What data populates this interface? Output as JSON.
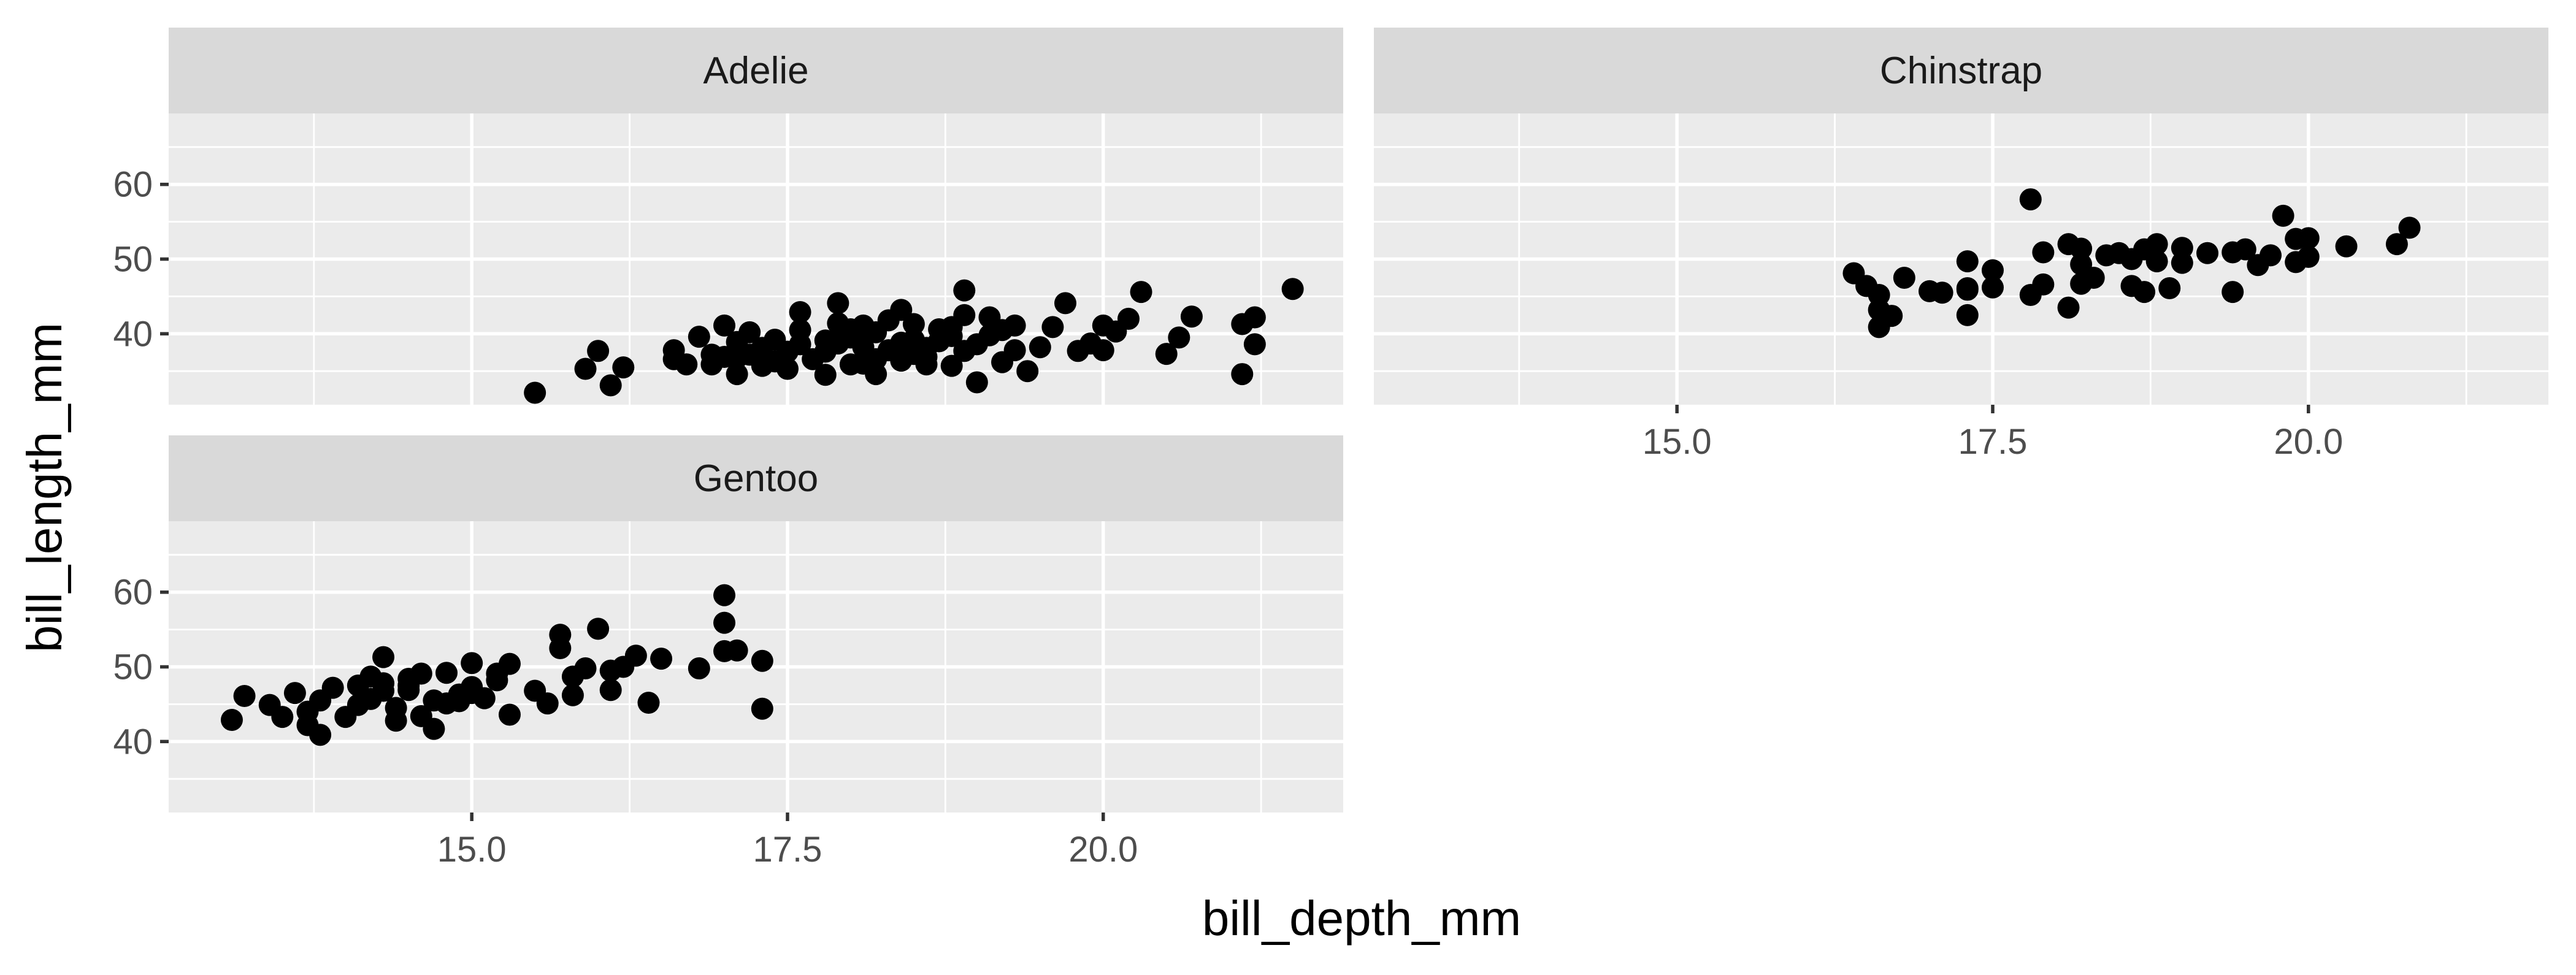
{
  "chart_data": {
    "type": "scatter",
    "xlabel": "bill_depth_mm",
    "ylabel": "bill_length_mm",
    "xlim": [
      12.6,
      21.9
    ],
    "ylim": [
      30.5,
      69.5
    ],
    "x_ticks": [
      15.0,
      17.5,
      20.0
    ],
    "x_tick_labels": [
      "15.0",
      "17.5",
      "20.0"
    ],
    "y_ticks": [
      40,
      50,
      60
    ],
    "y_tick_labels": [
      "40",
      "50",
      "60"
    ],
    "grid": true,
    "facets": [
      {
        "name": "Adelie",
        "points": [
          [
            15.5,
            32.1
          ],
          [
            15.9,
            35.3
          ],
          [
            16.0,
            37.7
          ],
          [
            16.1,
            33.1
          ],
          [
            16.2,
            35.5
          ],
          [
            16.6,
            37.8
          ],
          [
            16.6,
            36.6
          ],
          [
            16.7,
            35.9
          ],
          [
            16.8,
            39.6
          ],
          [
            16.9,
            37.2
          ],
          [
            17.0,
            41.1
          ],
          [
            17.1,
            36.8
          ],
          [
            17.1,
            38.9
          ],
          [
            17.2,
            37.2
          ],
          [
            17.2,
            40.2
          ],
          [
            17.3,
            35.7
          ],
          [
            17.3,
            38.1
          ],
          [
            17.4,
            36.3
          ],
          [
            17.4,
            39.2
          ],
          [
            17.5,
            35.3
          ],
          [
            17.5,
            37.6
          ],
          [
            17.6,
            40.5
          ],
          [
            17.6,
            38.6
          ],
          [
            17.7,
            36.6
          ],
          [
            17.8,
            39.1
          ],
          [
            17.8,
            37.6
          ],
          [
            17.9,
            38.7
          ],
          [
            17.9,
            41.4
          ],
          [
            18.0,
            35.9
          ],
          [
            18.0,
            39.5
          ],
          [
            18.0,
            40.6
          ],
          [
            18.1,
            36.0
          ],
          [
            18.1,
            39.5
          ],
          [
            18.1,
            41.1
          ],
          [
            18.2,
            36.6
          ],
          [
            18.2,
            40.2
          ],
          [
            18.3,
            37.8
          ],
          [
            18.3,
            41.8
          ],
          [
            18.4,
            38.8
          ],
          [
            18.4,
            36.4
          ],
          [
            18.5,
            39.2
          ],
          [
            18.5,
            41.3
          ],
          [
            18.6,
            36.9
          ],
          [
            18.6,
            38.1
          ],
          [
            18.7,
            39.0
          ],
          [
            18.7,
            40.6
          ],
          [
            18.8,
            35.7
          ],
          [
            18.8,
            39.7
          ],
          [
            18.9,
            37.7
          ],
          [
            18.9,
            42.5
          ],
          [
            18.9,
            45.8
          ],
          [
            19.0,
            38.6
          ],
          [
            19.0,
            33.5
          ],
          [
            19.1,
            39.8
          ],
          [
            19.1,
            42.2
          ],
          [
            19.2,
            36.2
          ],
          [
            19.3,
            37.8
          ],
          [
            19.3,
            41.1
          ],
          [
            19.4,
            35.0
          ],
          [
            19.5,
            38.2
          ],
          [
            19.6,
            40.9
          ],
          [
            19.7,
            44.1
          ],
          [
            19.8,
            37.7
          ],
          [
            19.9,
            38.7
          ],
          [
            20.0,
            41.1
          ],
          [
            20.1,
            40.3
          ],
          [
            20.2,
            42.0
          ],
          [
            20.3,
            45.6
          ],
          [
            20.5,
            37.3
          ],
          [
            20.6,
            39.5
          ],
          [
            20.7,
            42.3
          ],
          [
            21.1,
            41.3
          ],
          [
            21.1,
            34.6
          ],
          [
            21.2,
            42.2
          ],
          [
            21.2,
            38.6
          ],
          [
            21.5,
            46.0
          ],
          [
            17.1,
            34.6
          ],
          [
            16.9,
            35.9
          ],
          [
            17.0,
            36.9
          ],
          [
            17.8,
            34.5
          ],
          [
            18.2,
            34.6
          ],
          [
            18.5,
            37.3
          ],
          [
            18.6,
            35.9
          ],
          [
            19.2,
            40.5
          ],
          [
            20.0,
            37.8
          ],
          [
            17.9,
            44.1
          ],
          [
            18.1,
            38.2
          ],
          [
            17.6,
            42.9
          ],
          [
            18.4,
            43.2
          ],
          [
            18.8,
            40.9
          ]
        ]
      },
      {
        "name": "Chinstrap",
        "points": [
          [
            16.4,
            48.1
          ],
          [
            16.5,
            46.4
          ],
          [
            16.6,
            45.2
          ],
          [
            16.6,
            43.2
          ],
          [
            16.6,
            40.9
          ],
          [
            16.7,
            42.4
          ],
          [
            16.8,
            47.5
          ],
          [
            17.0,
            45.7
          ],
          [
            17.1,
            45.5
          ],
          [
            17.3,
            46.1
          ],
          [
            17.3,
            42.5
          ],
          [
            17.3,
            49.7
          ],
          [
            17.5,
            46.2
          ],
          [
            17.5,
            48.5
          ],
          [
            17.8,
            58.0
          ],
          [
            17.8,
            45.2
          ],
          [
            17.9,
            46.6
          ],
          [
            17.9,
            50.9
          ],
          [
            18.1,
            43.5
          ],
          [
            18.1,
            52.0
          ],
          [
            18.2,
            46.7
          ],
          [
            18.2,
            49.3
          ],
          [
            18.3,
            47.5
          ],
          [
            18.4,
            50.5
          ],
          [
            18.5,
            50.8
          ],
          [
            18.6,
            46.4
          ],
          [
            18.7,
            45.6
          ],
          [
            18.7,
            51.3
          ],
          [
            18.8,
            52.0
          ],
          [
            18.9,
            46.1
          ],
          [
            19.0,
            49.5
          ],
          [
            19.0,
            51.5
          ],
          [
            19.2,
            50.8
          ],
          [
            19.4,
            45.6
          ],
          [
            19.5,
            51.3
          ],
          [
            19.6,
            49.2
          ],
          [
            19.7,
            50.5
          ],
          [
            19.8,
            55.8
          ],
          [
            19.9,
            52.7
          ],
          [
            19.9,
            49.6
          ],
          [
            20.0,
            50.3
          ],
          [
            20.0,
            52.8
          ],
          [
            20.3,
            51.7
          ],
          [
            20.7,
            52.0
          ],
          [
            20.8,
            54.2
          ],
          [
            18.6,
            50.0
          ],
          [
            18.8,
            49.7
          ],
          [
            19.4,
            50.9
          ],
          [
            17.3,
            45.9
          ],
          [
            18.2,
            51.4
          ]
        ]
      },
      {
        "name": "Gentoo",
        "points": [
          [
            13.1,
            42.9
          ],
          [
            13.2,
            46.1
          ],
          [
            13.4,
            44.9
          ],
          [
            13.5,
            43.3
          ],
          [
            13.6,
            46.5
          ],
          [
            13.7,
            44.0
          ],
          [
            13.7,
            42.2
          ],
          [
            13.8,
            40.9
          ],
          [
            13.8,
            45.5
          ],
          [
            13.9,
            47.2
          ],
          [
            14.0,
            43.3
          ],
          [
            14.1,
            47.5
          ],
          [
            14.2,
            48.7
          ],
          [
            14.2,
            45.7
          ],
          [
            14.3,
            46.8
          ],
          [
            14.3,
            51.3
          ],
          [
            14.4,
            42.8
          ],
          [
            14.4,
            44.5
          ],
          [
            14.5,
            48.4
          ],
          [
            14.5,
            46.9
          ],
          [
            14.6,
            43.4
          ],
          [
            14.6,
            49.1
          ],
          [
            14.7,
            41.7
          ],
          [
            14.8,
            45.1
          ],
          [
            14.8,
            49.2
          ],
          [
            14.9,
            46.3
          ],
          [
            15.0,
            46.5
          ],
          [
            15.0,
            50.5
          ],
          [
            15.1,
            45.8
          ],
          [
            15.2,
            49.1
          ],
          [
            15.3,
            43.6
          ],
          [
            15.3,
            50.4
          ],
          [
            15.5,
            46.8
          ],
          [
            15.6,
            45.1
          ],
          [
            15.7,
            52.5
          ],
          [
            15.7,
            54.3
          ],
          [
            15.8,
            46.2
          ],
          [
            15.9,
            49.8
          ],
          [
            16.0,
            55.1
          ],
          [
            16.1,
            46.9
          ],
          [
            16.2,
            50.0
          ],
          [
            16.3,
            51.5
          ],
          [
            16.4,
            45.2
          ],
          [
            16.5,
            51.1
          ],
          [
            16.8,
            49.8
          ],
          [
            17.0,
            59.6
          ],
          [
            17.0,
            55.9
          ],
          [
            17.0,
            52.1
          ],
          [
            17.1,
            52.2
          ],
          [
            17.3,
            50.8
          ],
          [
            17.3,
            44.4
          ],
          [
            14.5,
            47.5
          ],
          [
            15.2,
            48.2
          ],
          [
            14.9,
            45.4
          ],
          [
            14.1,
            44.9
          ],
          [
            16.1,
            49.5
          ],
          [
            15.8,
            48.7
          ],
          [
            14.7,
            45.5
          ],
          [
            14.3,
            47.8
          ],
          [
            15.0,
            47.3
          ]
        ]
      }
    ]
  }
}
